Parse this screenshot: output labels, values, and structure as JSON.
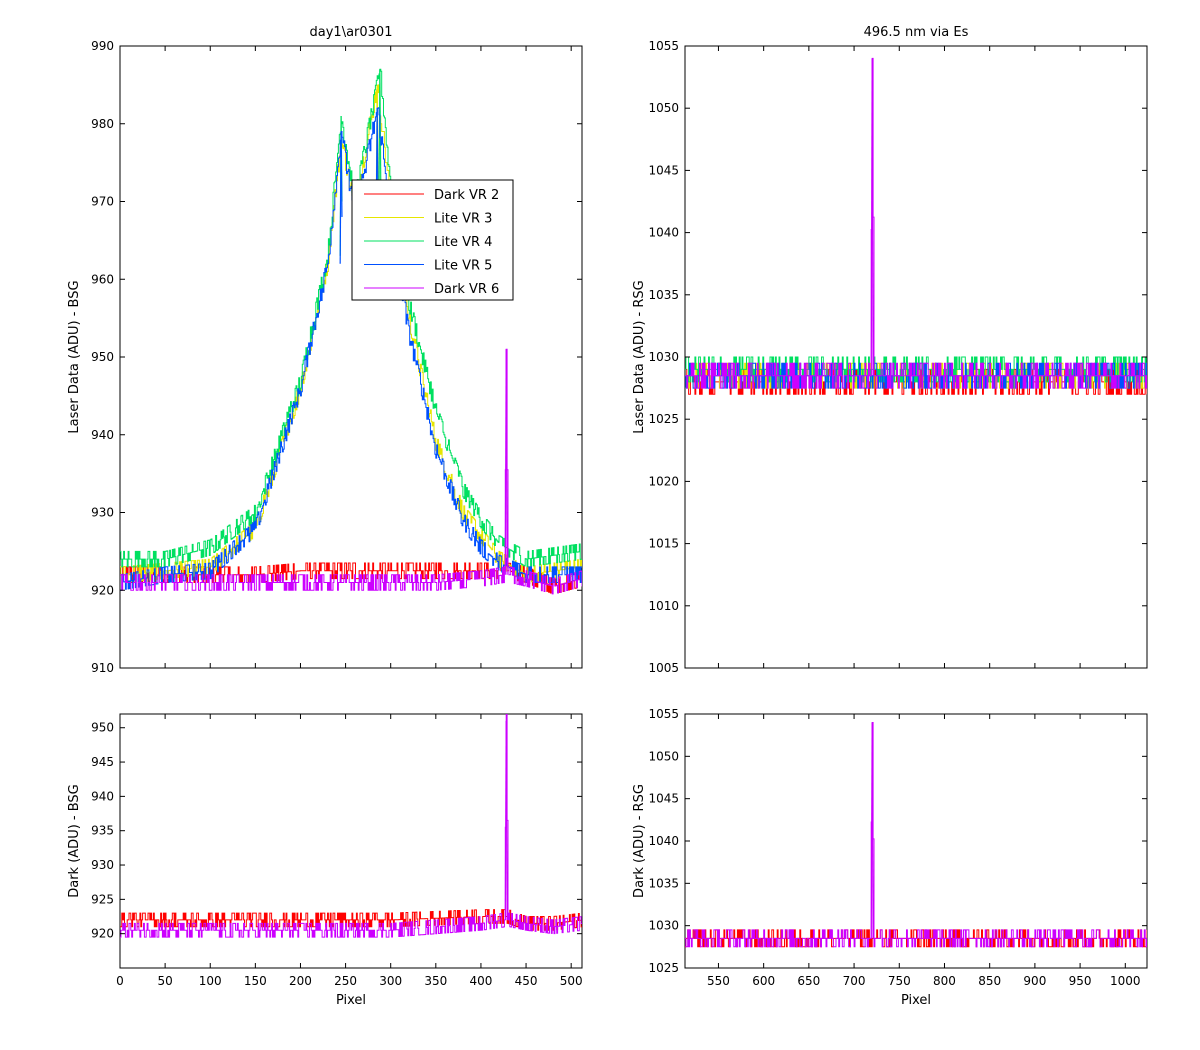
{
  "colors": {
    "Dark VR 2": "#ff0000",
    "Lite VR 3": "#e6e600",
    "Lite VR 4": "#00e060",
    "Lite VR 5": "#0050ff",
    "Dark VR 6": "#cc00ff"
  },
  "chart_data": [
    {
      "id": "tl",
      "type": "line",
      "title": "day1\\ar0301",
      "xlabel": "",
      "ylabel": "Laser Data (ADU) - BSG",
      "xlim": [
        0,
        512
      ],
      "ylim": [
        910,
        990
      ],
      "xticks": [
        0,
        50,
        100,
        150,
        200,
        250,
        300,
        350,
        400,
        450,
        500
      ],
      "yticks": [
        910,
        920,
        930,
        940,
        950,
        960,
        970,
        980,
        990
      ],
      "show_xticklabels": false,
      "legend": {
        "position": "inside-center",
        "entries": [
          "Dark VR 2",
          "Lite VR 3",
          "Lite VR 4",
          "Lite VR 5",
          "Dark VR 6"
        ]
      },
      "series": [
        {
          "name": "Dark VR 2",
          "x": [
            0,
            50,
            100,
            150,
            200,
            250,
            300,
            350,
            400,
            430,
            450,
            480,
            512
          ],
          "y": [
            922,
            922,
            922,
            922,
            922.5,
            922.5,
            922.5,
            922.5,
            922.5,
            922.5,
            922,
            920.5,
            921.5
          ]
        },
        {
          "name": "Lite VR 3",
          "x": [
            0,
            50,
            100,
            150,
            200,
            230,
            245,
            260,
            285,
            300,
            320,
            350,
            380,
            400,
            420,
            450,
            512
          ],
          "y": [
            922,
            922.5,
            923,
            928,
            946,
            962,
            978,
            969,
            985,
            970,
            955,
            939,
            930,
            927,
            924,
            922,
            923
          ]
        },
        {
          "name": "Lite VR 4",
          "x": [
            0,
            50,
            100,
            150,
            200,
            230,
            245,
            260,
            288,
            300,
            320,
            350,
            380,
            400,
            420,
            450,
            512
          ],
          "y": [
            924,
            924,
            925.5,
            930,
            947,
            963,
            981,
            970,
            987,
            972,
            957,
            943,
            933,
            929,
            926,
            924,
            925
          ]
        },
        {
          "name": "Lite VR 5",
          "x": [
            0,
            50,
            100,
            150,
            200,
            230,
            245,
            260,
            285,
            300,
            320,
            350,
            380,
            400,
            420,
            450,
            512
          ],
          "y": [
            921,
            922,
            922.5,
            928,
            946,
            962,
            979,
            968,
            982,
            968,
            953,
            938,
            929,
            925.5,
            923.5,
            922,
            922
          ]
        },
        {
          "name": "Dark VR 6",
          "x": [
            0,
            50,
            100,
            150,
            200,
            250,
            300,
            350,
            400,
            426,
            428,
            430,
            432,
            450,
            480,
            512
          ],
          "y": [
            921,
            921,
            921,
            921,
            921,
            921,
            921,
            921,
            921.5,
            922,
            951,
            922,
            922,
            921.5,
            920.5,
            921.5
          ]
        }
      ]
    },
    {
      "id": "tr",
      "type": "line",
      "title": "496.5 nm via Es",
      "xlabel": "",
      "ylabel": "Laser Data (ADU) - RSG",
      "xlim": [
        513,
        1024
      ],
      "ylim": [
        1005,
        1055
      ],
      "xticks": [
        550,
        600,
        650,
        700,
        750,
        800,
        850,
        900,
        950,
        1000
      ],
      "yticks": [
        1005,
        1010,
        1015,
        1020,
        1025,
        1030,
        1035,
        1040,
        1045,
        1050,
        1055
      ],
      "show_xticklabels": false,
      "series": [
        {
          "name": "Dark VR 2",
          "x": [
            513,
            600,
            700,
            800,
            900,
            1024
          ],
          "y": [
            1028,
            1028,
            1028,
            1028,
            1028,
            1028
          ]
        },
        {
          "name": "Lite VR 3",
          "x": [
            513,
            600,
            700,
            800,
            900,
            1024
          ],
          "y": [
            1028.5,
            1028.5,
            1028.5,
            1028.5,
            1028.5,
            1028.5
          ]
        },
        {
          "name": "Lite VR 4",
          "x": [
            513,
            600,
            700,
            800,
            900,
            1024
          ],
          "y": [
            1029,
            1029,
            1029,
            1029,
            1029,
            1029
          ]
        },
        {
          "name": "Lite VR 5",
          "x": [
            513,
            600,
            700,
            800,
            900,
            1024
          ],
          "y": [
            1028.5,
            1028.5,
            1028.5,
            1028.5,
            1028.5,
            1028.5
          ]
        },
        {
          "name": "Dark VR 6",
          "x": [
            513,
            600,
            718,
            720,
            722,
            800,
            900,
            1024
          ],
          "y": [
            1028.5,
            1028.5,
            1028.5,
            1054,
            1028.5,
            1028.5,
            1028.5,
            1028.5
          ]
        }
      ]
    },
    {
      "id": "bl",
      "type": "line",
      "title": "",
      "xlabel": "Pixel",
      "ylabel": "Dark (ADU) - BSG",
      "xlim": [
        0,
        512
      ],
      "ylim": [
        915,
        952
      ],
      "xticks": [
        0,
        50,
        100,
        150,
        200,
        250,
        300,
        350,
        400,
        450,
        500
      ],
      "yticks": [
        920,
        925,
        930,
        935,
        940,
        945,
        950
      ],
      "show_xticklabels": true,
      "series": [
        {
          "name": "Dark VR 2",
          "x": [
            0,
            100,
            200,
            300,
            400,
            430,
            450,
            480,
            512
          ],
          "y": [
            922,
            922,
            922,
            922,
            922.5,
            922.5,
            921.5,
            921.5,
            922
          ]
        },
        {
          "name": "Dark VR 6",
          "x": [
            0,
            100,
            200,
            300,
            400,
            426,
            428,
            430,
            432,
            450,
            480,
            512
          ],
          "y": [
            920.5,
            920.5,
            920.5,
            920.5,
            921.5,
            922,
            951,
            922,
            922,
            921.5,
            921,
            921.5
          ]
        }
      ]
    },
    {
      "id": "br",
      "type": "line",
      "title": "",
      "xlabel": "Pixel",
      "ylabel": "Dark (ADU) - RSG",
      "xlim": [
        513,
        1024
      ],
      "ylim": [
        1025,
        1055
      ],
      "xticks": [
        550,
        600,
        650,
        700,
        750,
        800,
        850,
        900,
        950,
        1000
      ],
      "yticks": [
        1025,
        1030,
        1035,
        1040,
        1045,
        1050,
        1055
      ],
      "show_xticklabels": true,
      "series": [
        {
          "name": "Dark VR 2",
          "x": [
            513,
            600,
            700,
            800,
            900,
            1024
          ],
          "y": [
            1028.5,
            1028.5,
            1028.5,
            1028.5,
            1028.5,
            1028.5
          ]
        },
        {
          "name": "Dark VR 6",
          "x": [
            513,
            600,
            718,
            720,
            722,
            800,
            900,
            1024
          ],
          "y": [
            1028.5,
            1028.5,
            1028.5,
            1054,
            1028.5,
            1028.5,
            1028.5,
            1028.5
          ]
        }
      ]
    }
  ]
}
